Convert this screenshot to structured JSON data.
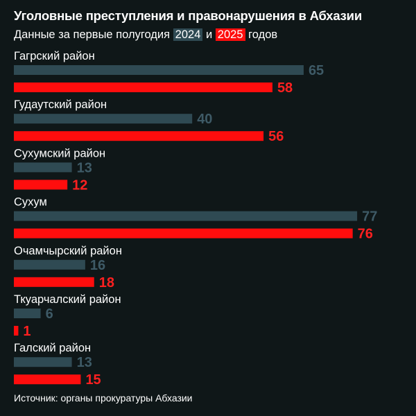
{
  "title": "Уголовные преступления и правонарушения в Абхазии",
  "subtitle": {
    "prefix": "Данные за первые полугодия",
    "year1": "2024",
    "conj": "и",
    "year2": "2025",
    "suffix": "годов"
  },
  "source": "Источник: органы прокуратуры Абхазии",
  "colors": {
    "background": "#0f1718",
    "series_2024": "#2f4a53",
    "series_2025": "#ff0d0d",
    "label_2024": "#3e5a66",
    "label_2025": "#ff2020"
  },
  "chart_data": {
    "type": "bar",
    "orientation": "horizontal",
    "categories": [
      "Гагрский район",
      "Гудаутский район",
      "Сухумский район",
      "Сухум",
      "Очамчырский район",
      "Ткуарчалский район",
      "Галский район"
    ],
    "series": [
      {
        "name": "2024",
        "values": [
          65,
          40,
          13,
          77,
          16,
          6,
          13
        ]
      },
      {
        "name": "2025",
        "values": [
          58,
          56,
          12,
          76,
          18,
          1,
          15
        ]
      }
    ],
    "data_labels": true,
    "grid": false,
    "legend": "subtitle"
  }
}
